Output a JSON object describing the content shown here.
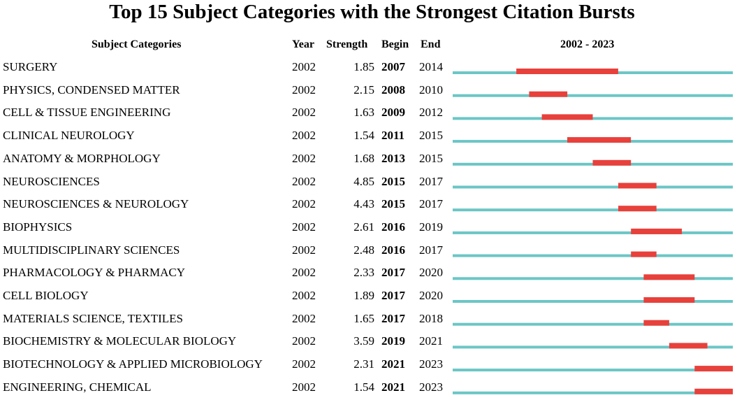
{
  "title": "Top 15 Subject Categories with the Strongest Citation Bursts",
  "headers": {
    "category": "Subject Categories",
    "year": "Year",
    "strength": "Strength",
    "begin": "Begin",
    "end": "End",
    "timeline": "2002 - 2023"
  },
  "colors": {
    "timeline": "#6cc6c6",
    "burst": "#e8403b"
  },
  "chart_data": {
    "type": "table",
    "title": "Top 15 Subject Categories with the Strongest Citation Bursts",
    "range": [
      2002,
      2023
    ],
    "rows": [
      {
        "category": "SURGERY",
        "year": "2002",
        "strength": "1.85",
        "begin": "2007",
        "end": "2014"
      },
      {
        "category": "PHYSICS, CONDENSED MATTER",
        "year": "2002",
        "strength": "2.15",
        "begin": "2008",
        "end": "2010"
      },
      {
        "category": "CELL & TISSUE ENGINEERING",
        "year": "2002",
        "strength": "1.63",
        "begin": "2009",
        "end": "2012"
      },
      {
        "category": "CLINICAL NEUROLOGY",
        "year": "2002",
        "strength": "1.54",
        "begin": "2011",
        "end": "2015"
      },
      {
        "category": "ANATOMY & MORPHOLOGY",
        "year": "2002",
        "strength": "1.68",
        "begin": "2013",
        "end": "2015"
      },
      {
        "category": "NEUROSCIENCES",
        "year": "2002",
        "strength": "4.85",
        "begin": "2015",
        "end": "2017"
      },
      {
        "category": "NEUROSCIENCES & NEUROLOGY",
        "year": "2002",
        "strength": "4.43",
        "begin": "2015",
        "end": "2017"
      },
      {
        "category": "BIOPHYSICS",
        "year": "2002",
        "strength": "2.61",
        "begin": "2016",
        "end": "2019"
      },
      {
        "category": "MULTIDISCIPLINARY SCIENCES",
        "year": "2002",
        "strength": "2.48",
        "begin": "2016",
        "end": "2017"
      },
      {
        "category": "PHARMACOLOGY & PHARMACY",
        "year": "2002",
        "strength": "2.33",
        "begin": "2017",
        "end": "2020"
      },
      {
        "category": "CELL BIOLOGY",
        "year": "2002",
        "strength": "1.89",
        "begin": "2017",
        "end": "2020"
      },
      {
        "category": "MATERIALS SCIENCE, TEXTILES",
        "year": "2002",
        "strength": "1.65",
        "begin": "2017",
        "end": "2018"
      },
      {
        "category": "BIOCHEMISTRY & MOLECULAR BIOLOGY",
        "year": "2002",
        "strength": "3.59",
        "begin": "2019",
        "end": "2021"
      },
      {
        "category": "BIOTECHNOLOGY & APPLIED MICROBIOLOGY",
        "year": "2002",
        "strength": "2.31",
        "begin": "2021",
        "end": "2023"
      },
      {
        "category": "ENGINEERING, CHEMICAL",
        "year": "2002",
        "strength": "1.54",
        "begin": "2021",
        "end": "2023"
      }
    ]
  }
}
